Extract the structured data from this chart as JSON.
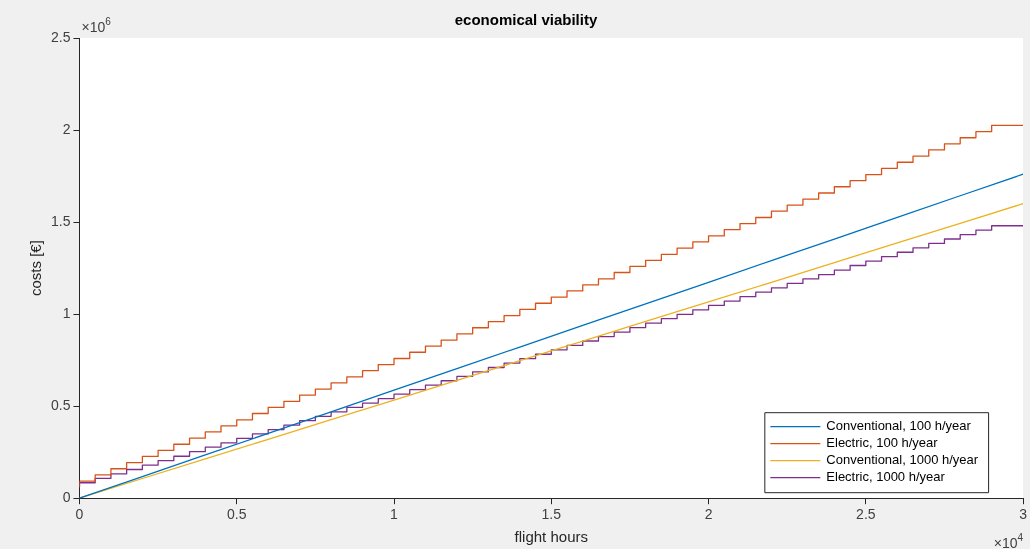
{
  "chart_data": {
    "type": "line",
    "title": "economical viability",
    "xlabel": "flight hours",
    "ylabel": "costs [€]",
    "annotations": [
      "×10$^{6}$",
      "×10$^{4}$"
    ],
    "xlim": [
      0,
      3
    ],
    "xticks": [
      0,
      0.5,
      1,
      1.5,
      2,
      2.5,
      3
    ],
    "ylim": [
      0,
      2.5
    ],
    "yticks": [
      0,
      0.5,
      1,
      1.5,
      2,
      2.5
    ],
    "grid": false,
    "legend": "bottom right",
    "marker": "none",
    "line_style": "solid",
    "series": [
      {
        "name": "Conventional, 100 h/year",
        "color": "#0072bd",
        "type": "line",
        "x": [
          0,
          0.2,
          0.4,
          0.6,
          0.8,
          1,
          1.2,
          1.4,
          1.6,
          1.8,
          2,
          2.2,
          2.4,
          2.6,
          2.8,
          3
        ],
        "values": [
          0,
          0.117,
          0.235,
          0.352,
          0.469,
          0.587,
          0.704,
          0.821,
          0.939,
          1.056,
          1.173,
          1.291,
          1.408,
          1.525,
          1.643,
          1.76
        ]
      },
      {
        "name": "Electric, 100 h/year",
        "color": "#d95319",
        "type": "step",
        "x": [
          0,
          0.05,
          0.1,
          0.15,
          0.2,
          0.25,
          0.3,
          0.35,
          0.4,
          0.45,
          0.5,
          0.55,
          0.6,
          0.65,
          0.7,
          0.75,
          0.8,
          0.85,
          0.9,
          0.95,
          1,
          1.05,
          1.1,
          1.15,
          1.2,
          1.25,
          1.3,
          1.35,
          1.4,
          1.45,
          1.5,
          1.55,
          1.6,
          1.65,
          1.7,
          1.75,
          1.8,
          1.85,
          1.9,
          1.95,
          2,
          2.05,
          2.1,
          2.15,
          2.2,
          2.25,
          2.3,
          2.35,
          2.4,
          2.45,
          2.5,
          2.55,
          2.6,
          2.65,
          2.7,
          2.75,
          2.8,
          2.85,
          2.9,
          2.95,
          3
        ],
        "values": [
          0.06,
          0.093,
          0.127,
          0.16,
          0.193,
          0.227,
          0.26,
          0.293,
          0.326,
          0.36,
          0.393,
          0.426,
          0.46,
          0.493,
          0.526,
          0.56,
          0.593,
          0.626,
          0.659,
          0.693,
          0.726,
          0.759,
          0.793,
          0.826,
          0.859,
          0.893,
          0.926,
          0.959,
          0.992,
          1.026,
          1.059,
          1.092,
          1.126,
          1.159,
          1.192,
          1.226,
          1.259,
          1.292,
          1.325,
          1.359,
          1.392,
          1.425,
          1.459,
          1.492,
          1.525,
          1.559,
          1.592,
          1.625,
          1.658,
          1.692,
          1.725,
          1.758,
          1.792,
          1.825,
          1.858,
          1.892,
          1.925,
          1.958,
          1.991,
          2.025,
          2.025
        ]
      },
      {
        "name": "Conventional, 1000 h/year",
        "color": "#edb120",
        "type": "line",
        "x": [
          0,
          0.2,
          0.4,
          0.6,
          0.8,
          1,
          1.2,
          1.4,
          1.6,
          1.8,
          2,
          2.2,
          2.4,
          2.6,
          2.8,
          3
        ],
        "values": [
          0,
          0.107,
          0.213,
          0.32,
          0.427,
          0.533,
          0.64,
          0.747,
          0.853,
          0.96,
          1.067,
          1.173,
          1.28,
          1.387,
          1.493,
          1.6
        ]
      },
      {
        "name": "Electric, 1000 h/year",
        "color": "#7e2f8e",
        "type": "step",
        "x": [
          0,
          0.05,
          0.1,
          0.15,
          0.2,
          0.25,
          0.3,
          0.35,
          0.4,
          0.45,
          0.5,
          0.55,
          0.6,
          0.65,
          0.7,
          0.75,
          0.8,
          0.85,
          0.9,
          0.95,
          1,
          1.05,
          1.1,
          1.15,
          1.2,
          1.25,
          1.3,
          1.35,
          1.4,
          1.45,
          1.5,
          1.55,
          1.6,
          1.65,
          1.7,
          1.75,
          1.8,
          1.85,
          1.9,
          1.95,
          2,
          2.05,
          2.1,
          2.15,
          2.2,
          2.25,
          2.3,
          2.35,
          2.4,
          2.45,
          2.5,
          2.55,
          2.6,
          2.65,
          2.7,
          2.75,
          2.8,
          2.85,
          2.9,
          2.95,
          3
        ],
        "values": [
          0.06,
          0.084,
          0.108,
          0.132,
          0.156,
          0.18,
          0.204,
          0.228,
          0.253,
          0.277,
          0.301,
          0.325,
          0.349,
          0.373,
          0.397,
          0.421,
          0.445,
          0.469,
          0.493,
          0.517,
          0.541,
          0.565,
          0.59,
          0.614,
          0.638,
          0.662,
          0.686,
          0.71,
          0.734,
          0.758,
          0.782,
          0.806,
          0.83,
          0.854,
          0.878,
          0.902,
          0.927,
          0.951,
          0.975,
          0.999,
          1.023,
          1.047,
          1.071,
          1.095,
          1.119,
          1.143,
          1.167,
          1.191,
          1.215,
          1.239,
          1.264,
          1.288,
          1.312,
          1.336,
          1.36,
          1.384,
          1.408,
          1.432,
          1.456,
          1.48,
          1.48
        ]
      }
    ]
  }
}
